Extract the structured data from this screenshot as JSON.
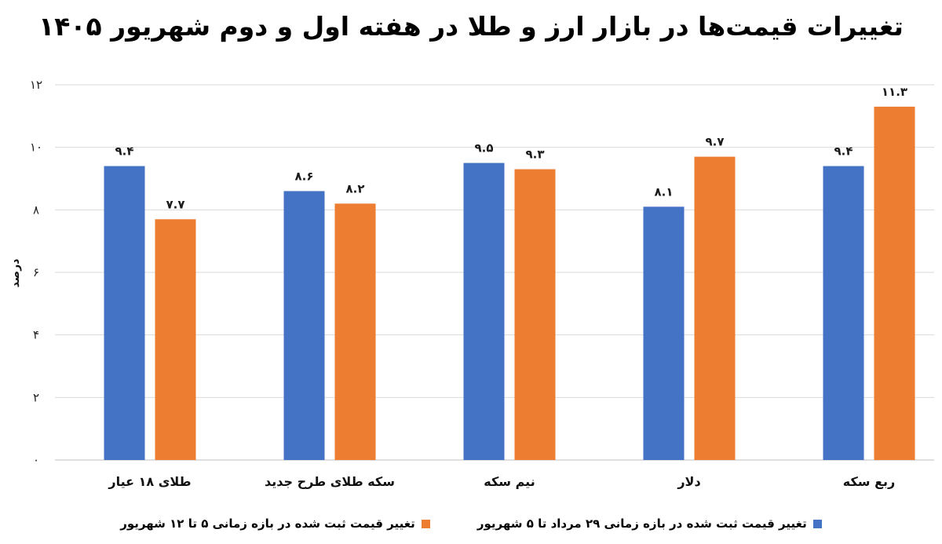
{
  "chart_data": {
    "type": "bar",
    "title": "تغییرات قیمت‌ها در بازار ارز و طلا در هفته اول و دوم شهریور ۱۴۰۵",
    "ylabel": "درصد",
    "xlabel": "",
    "ylim": [
      0,
      12
    ],
    "yticks": [
      0,
      2,
      4,
      6,
      8,
      10,
      12
    ],
    "ytick_labels": [
      "۰",
      "۲",
      "۴",
      "۶",
      "۸",
      "۱۰",
      "۱۲"
    ],
    "grid": true,
    "legend_position": "bottom",
    "categories": [
      "ربع سکه",
      "دلار",
      "نیم سکه",
      "سکه طلای طرح جدید",
      "طلای ۱۸ عیار"
    ],
    "series": [
      {
        "name": "تغییر قیمت ثبت شده در بازه زمانی ۲۹ مرداد تا ۵ شهریور",
        "color": "#4472C4",
        "values": [
          9.4,
          8.1,
          9.5,
          8.6,
          9.4
        ],
        "labels": [
          "۹.۴",
          "۸.۱",
          "۹.۵",
          "۸.۶",
          "۹.۴"
        ]
      },
      {
        "name": "تغییر قیمت ثبت شده در بازه زمانی ۵ تا ۱۲ شهریور",
        "color": "#ED7D31",
        "values": [
          11.3,
          9.7,
          9.3,
          8.2,
          7.7
        ],
        "labels": [
          "۱۱.۳",
          "۹.۷",
          "۹.۳",
          "۸.۲",
          "۷.۷"
        ]
      }
    ]
  }
}
